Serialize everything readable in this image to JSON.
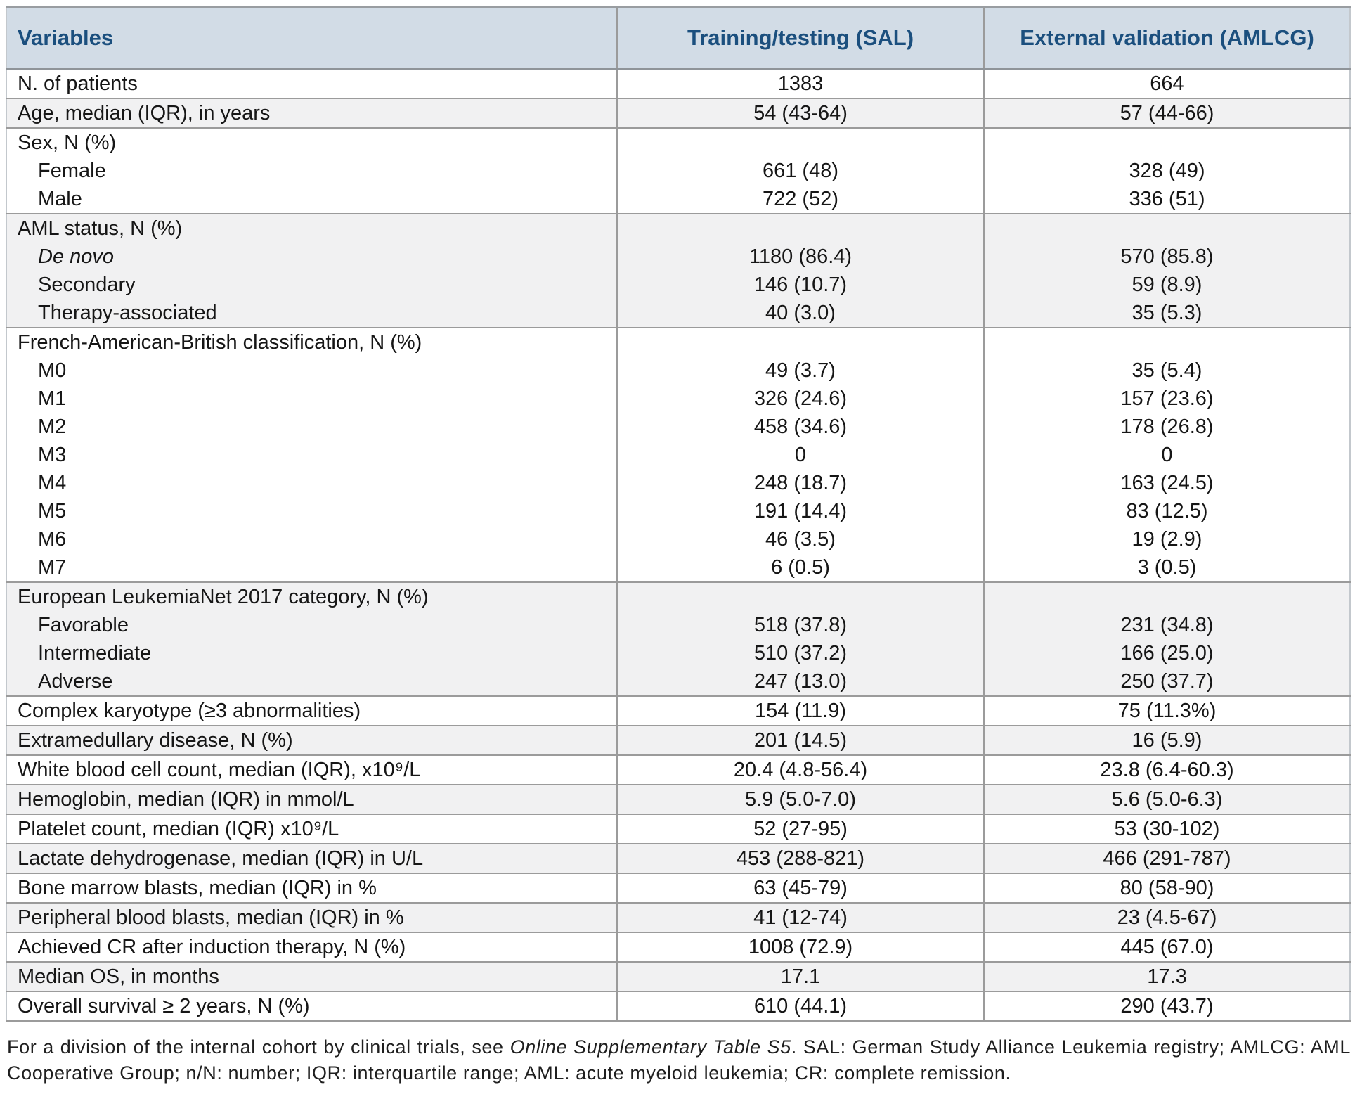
{
  "colors": {
    "header_bg": "#d2dce6",
    "header_text": "#1b4f7e",
    "row_shade": "#f1f1f2",
    "border_gray": "#9b9b9b"
  },
  "table": {
    "columns": [
      "Variables",
      "Training/testing (SAL)",
      "External validation (AMLCG)"
    ],
    "groups": [
      {
        "shade": false,
        "rows": [
          {
            "label": "N. of patients",
            "sal": "1383",
            "amlcg": "664"
          }
        ]
      },
      {
        "shade": true,
        "rows": [
          {
            "label": "Age, median (IQR), in years",
            "sal": "54 (43-64)",
            "amlcg": "57 (44-66)"
          }
        ]
      },
      {
        "shade": false,
        "rows": [
          {
            "label": "Sex, N (%)",
            "sal": "",
            "amlcg": ""
          },
          {
            "label": "Female",
            "indent": true,
            "sal": "661 (48)",
            "amlcg": "328 (49)"
          },
          {
            "label": "Male",
            "indent": true,
            "sal": "722 (52)",
            "amlcg": "336 (51)"
          }
        ]
      },
      {
        "shade": true,
        "rows": [
          {
            "label": "AML status, N (%)",
            "sal": "",
            "amlcg": ""
          },
          {
            "label": "De novo",
            "indent": true,
            "italic": true,
            "sal": "1180 (86.4)",
            "amlcg": "570 (85.8)"
          },
          {
            "label": "Secondary",
            "indent": true,
            "sal": "146 (10.7)",
            "amlcg": "59 (8.9)"
          },
          {
            "label": "Therapy-associated",
            "indent": true,
            "sal": "40 (3.0)",
            "amlcg": "35 (5.3)"
          }
        ]
      },
      {
        "shade": false,
        "rows": [
          {
            "label": "French-American-British classification, N (%)",
            "sal": "",
            "amlcg": ""
          },
          {
            "label": "M0",
            "indent": true,
            "sal": "49 (3.7)",
            "amlcg": "35 (5.4)"
          },
          {
            "label": "M1",
            "indent": true,
            "sal": "326 (24.6)",
            "amlcg": "157 (23.6)"
          },
          {
            "label": "M2",
            "indent": true,
            "sal": "458 (34.6)",
            "amlcg": "178 (26.8)"
          },
          {
            "label": "M3",
            "indent": true,
            "sal": "0",
            "amlcg": "0"
          },
          {
            "label": "M4",
            "indent": true,
            "sal": "248 (18.7)",
            "amlcg": "163 (24.5)"
          },
          {
            "label": "M5",
            "indent": true,
            "sal": "191 (14.4)",
            "amlcg": "83 (12.5)"
          },
          {
            "label": "M6",
            "indent": true,
            "sal": "46 (3.5)",
            "amlcg": "19 (2.9)"
          },
          {
            "label": "M7",
            "indent": true,
            "sal": "6 (0.5)",
            "amlcg": "3 (0.5)"
          }
        ]
      },
      {
        "shade": true,
        "rows": [
          {
            "label": "European LeukemiaNet 2017 category, N (%)",
            "sal": "",
            "amlcg": ""
          },
          {
            "label": "Favorable",
            "indent": true,
            "sal": "518 (37.8)",
            "amlcg": "231 (34.8)"
          },
          {
            "label": "Intermediate",
            "indent": true,
            "sal": "510 (37.2)",
            "amlcg": "166 (25.0)"
          },
          {
            "label": "Adverse",
            "indent": true,
            "sal": "247 (13.0)",
            "amlcg": "250 (37.7)"
          }
        ]
      },
      {
        "shade": false,
        "rows": [
          {
            "label": "Complex karyotype (≥3 abnormalities)",
            "sal": "154 (11.9)",
            "amlcg": "75 (11.3%)"
          }
        ]
      },
      {
        "shade": true,
        "rows": [
          {
            "label": "Extramedullary disease, N (%)",
            "sal": "201 (14.5)",
            "amlcg": "16 (5.9)"
          }
        ]
      },
      {
        "shade": false,
        "rows": [
          {
            "label": "White blood cell count, median (IQR), x10⁹/L",
            "sal": "20.4 (4.8-56.4)",
            "amlcg": "23.8 (6.4-60.3)"
          }
        ]
      },
      {
        "shade": true,
        "rows": [
          {
            "label": "Hemoglobin, median (IQR) in mmol/L",
            "sal": "5.9 (5.0-7.0)",
            "amlcg": "5.6 (5.0-6.3)"
          }
        ]
      },
      {
        "shade": false,
        "rows": [
          {
            "label": "Platelet count, median (IQR) x10⁹/L",
            "sal": "52 (27-95)",
            "amlcg": "53 (30-102)"
          }
        ]
      },
      {
        "shade": true,
        "rows": [
          {
            "label": "Lactate dehydrogenase, median (IQR) in U/L",
            "sal": "453 (288-821)",
            "amlcg": "466 (291-787)"
          }
        ]
      },
      {
        "shade": false,
        "rows": [
          {
            "label": "Bone marrow blasts, median (IQR) in %",
            "sal": "63 (45-79)",
            "amlcg": "80 (58-90)"
          }
        ]
      },
      {
        "shade": true,
        "rows": [
          {
            "label": "Peripheral blood blasts, median (IQR) in %",
            "sal": "41 (12-74)",
            "amlcg": "23 (4.5-67)"
          }
        ]
      },
      {
        "shade": false,
        "rows": [
          {
            "label": "Achieved CR after induction therapy, N (%)",
            "sal": "1008 (72.9)",
            "amlcg": "445 (67.0)"
          }
        ]
      },
      {
        "shade": true,
        "rows": [
          {
            "label": "Median OS, in months",
            "sal": "17.1",
            "amlcg": "17.3"
          }
        ]
      },
      {
        "shade": false,
        "rows": [
          {
            "label": "Overall survival ≥ 2 years, N (%)",
            "sal": "610 (44.1)",
            "amlcg": "290 (43.7)"
          }
        ]
      }
    ]
  },
  "footnote": {
    "part1": "For a division of the internal cohort by clinical trials, see ",
    "italic": "Online Supplementary Table S5",
    "part2": ". SAL: German Study Alliance Leukemia registry; AMLCG: AML Cooperative Group; n/N: number; IQR: interquartile range; AML: acute myeloid leukemia; CR: complete remission."
  }
}
